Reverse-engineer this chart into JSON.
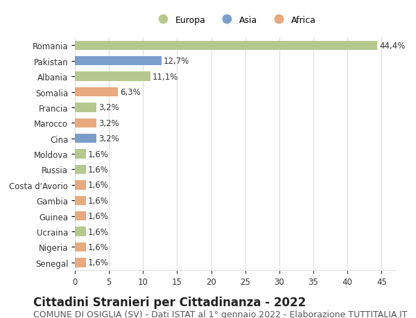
{
  "categories": [
    "Senegal",
    "Nigeria",
    "Ucraina",
    "Guinea",
    "Gambia",
    "Costa d'Avorio",
    "Russia",
    "Moldova",
    "Cina",
    "Marocco",
    "Francia",
    "Somalia",
    "Albania",
    "Pakistan",
    "Romania"
  ],
  "values": [
    1.6,
    1.6,
    1.6,
    1.6,
    1.6,
    1.6,
    1.6,
    1.6,
    3.2,
    3.2,
    3.2,
    6.3,
    11.1,
    12.7,
    44.4
  ],
  "colors": [
    "#e8a97e",
    "#e8a97e",
    "#b5c98e",
    "#e8a97e",
    "#e8a97e",
    "#e8a97e",
    "#b5c98e",
    "#b5c98e",
    "#7b9ec9",
    "#e8a97e",
    "#b5c98e",
    "#e8a97e",
    "#b5c98e",
    "#7b9ec9",
    "#b5c98e"
  ],
  "labels": [
    "1,6%",
    "1,6%",
    "1,6%",
    "1,6%",
    "1,6%",
    "1,6%",
    "1,6%",
    "1,6%",
    "3,2%",
    "3,2%",
    "3,2%",
    "6,3%",
    "11,1%",
    "12,7%",
    "44,4%"
  ],
  "legend_labels": [
    "Europa",
    "Asia",
    "Africa"
  ],
  "legend_colors": [
    "#b5c98e",
    "#7b9ec9",
    "#e8a97e"
  ],
  "title": "Cittadini Stranieri per Cittadinanza - 2022",
  "subtitle": "COMUNE DI OSIGLIA (SV) - Dati ISTAT al 1° gennaio 2022 - Elaborazione TUTTITALIA.IT",
  "xlim": [
    0,
    47
  ],
  "xticks": [
    0,
    5,
    10,
    15,
    20,
    25,
    30,
    35,
    40,
    45
  ],
  "background_color": "#ffffff",
  "grid_color": "#dddddd",
  "bar_height": 0.6,
  "label_fontsize": 8.5,
  "title_fontsize": 12,
  "subtitle_fontsize": 9,
  "tick_fontsize": 8.5
}
